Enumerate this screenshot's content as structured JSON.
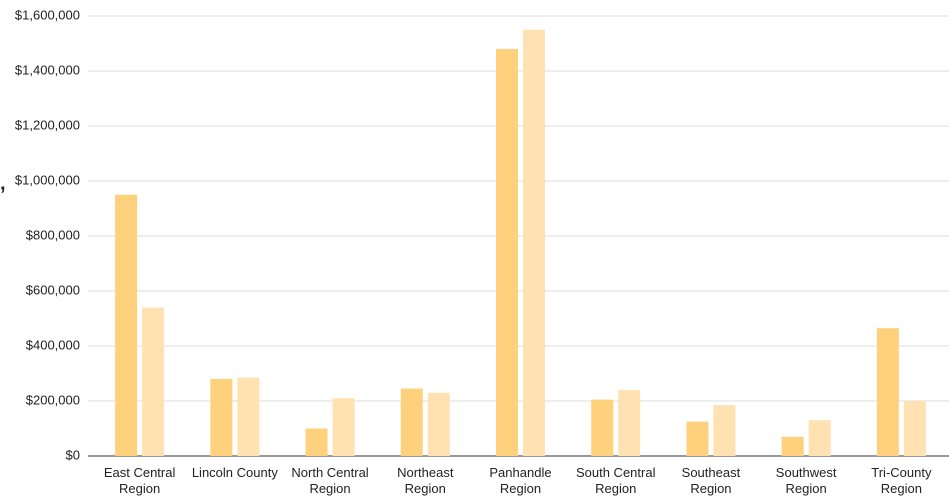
{
  "chart_data": {
    "type": "bar",
    "ylabel": ",",
    "categories": [
      "East Central Region",
      "Lincoln County",
      "North Central Region",
      "Northeast Region",
      "Panhandle Region",
      "South Central Region",
      "Southeast Region",
      "Southwest Region",
      "Tri-County Region"
    ],
    "series": [
      {
        "color": "#ffd17c",
        "values": [
          950000,
          280000,
          100000,
          245000,
          1480000,
          205000,
          125000,
          70000,
          465000
        ]
      },
      {
        "color": "#ffe1b2",
        "values": [
          540000,
          285000,
          210000,
          230000,
          1550000,
          240000,
          185000,
          130000,
          200000
        ]
      }
    ],
    "ylim": [
      0,
      1600000
    ],
    "yticks": [
      {
        "value": 0,
        "label": "$0"
      },
      {
        "value": 200000,
        "label": "$200,000"
      },
      {
        "value": 400000,
        "label": "$400,000"
      },
      {
        "value": 600000,
        "label": "$600,000"
      },
      {
        "value": 800000,
        "label": "$800,000"
      },
      {
        "value": 1000000,
        "label": "$1,000,000"
      },
      {
        "value": 1200000,
        "label": "$1,200,000"
      },
      {
        "value": 1400000,
        "label": "$1,400,000"
      },
      {
        "value": 1600000,
        "label": "$1,600,000"
      }
    ],
    "grid": true
  }
}
